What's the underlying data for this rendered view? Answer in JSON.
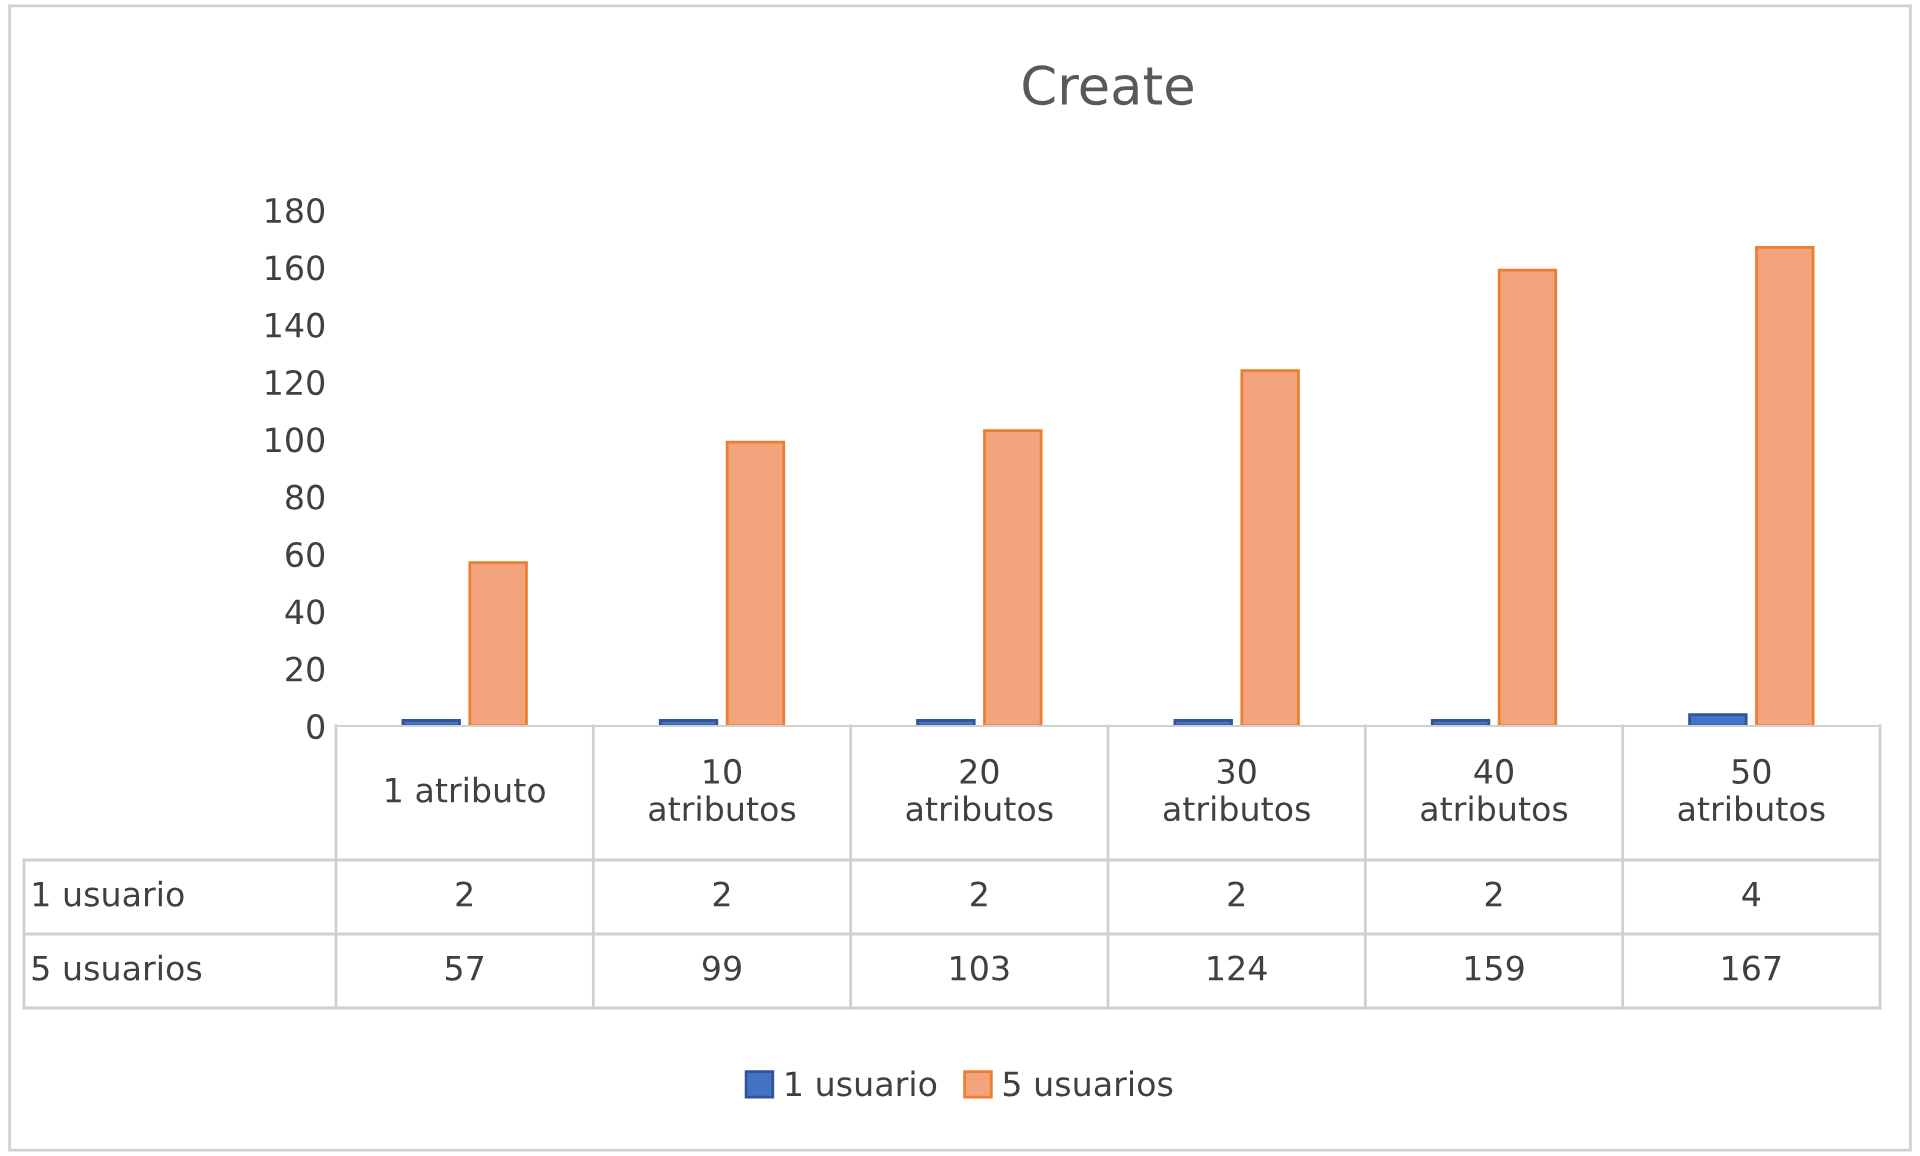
{
  "chart_data": {
    "type": "bar",
    "title": "Create",
    "categories": [
      "1 atributo",
      "10\natributos",
      "20\natributos",
      "30\natributos",
      "40\natributos",
      "50\natributos"
    ],
    "series": [
      {
        "name": "1 usuario",
        "color": "#4472c4",
        "values": [
          2,
          2,
          2,
          2,
          2,
          4
        ]
      },
      {
        "name": "5 usuarios",
        "color": "#f4a47c",
        "values": [
          57,
          99,
          103,
          124,
          159,
          167
        ]
      }
    ],
    "ylim": [
      0,
      180
    ],
    "yticks": [
      0,
      20,
      40,
      60,
      80,
      100,
      120,
      140,
      160,
      180
    ],
    "grid": false,
    "legend": "bottom",
    "data_labels": true
  }
}
